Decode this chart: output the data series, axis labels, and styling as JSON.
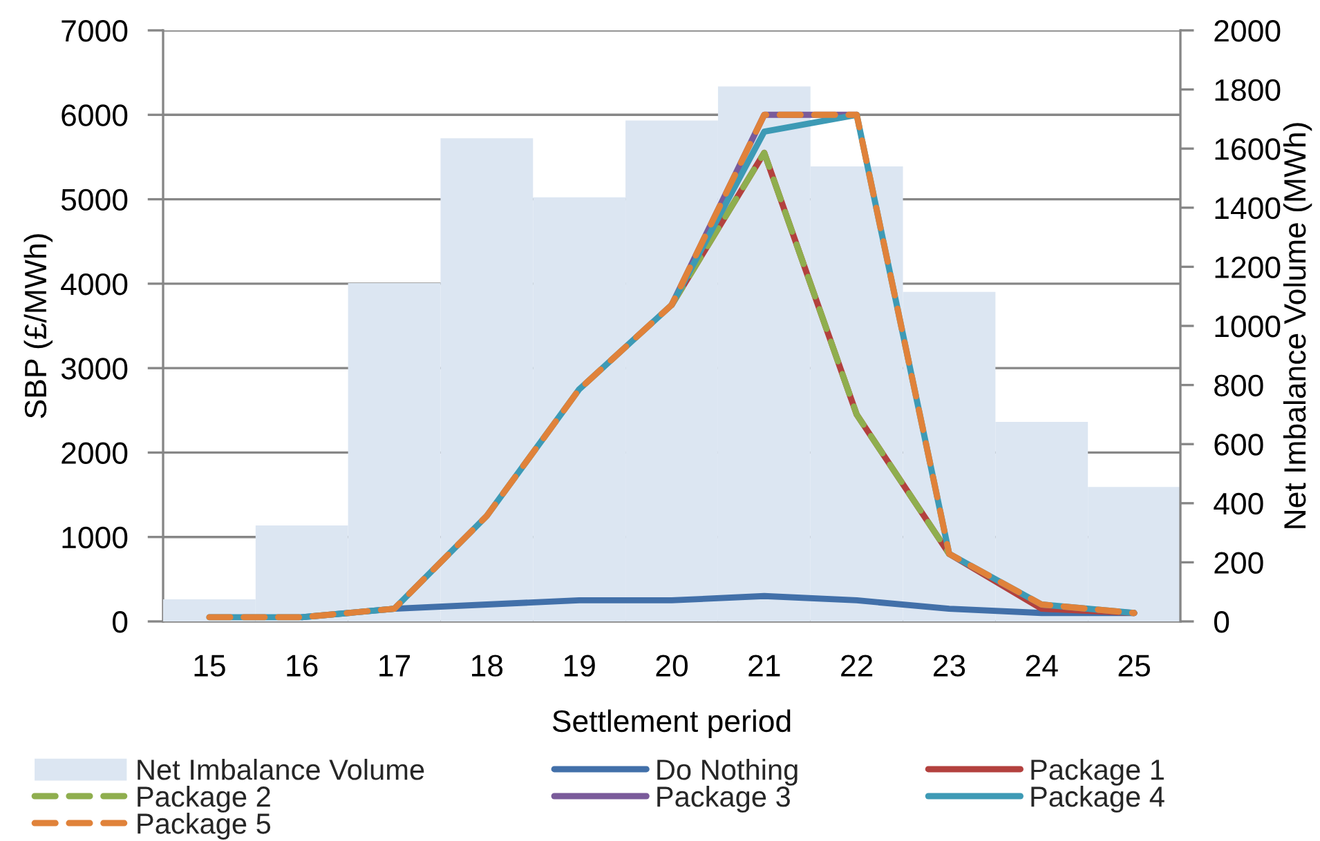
{
  "chart_data": {
    "type": "line",
    "xlabel": "Settlement period",
    "ylabel": "SBP (£/MWh)",
    "y2label": "Net Imbalance Volume (MWh)",
    "categories": [
      "15",
      "16",
      "17",
      "18",
      "19",
      "20",
      "21",
      "22",
      "23",
      "24",
      "25"
    ],
    "series": [
      {
        "name": "Net Imbalance Volume",
        "type": "bar",
        "axis": "y2",
        "color": "#dce6f2",
        "values": [
          75,
          325,
          1145,
          1635,
          1435,
          1695,
          1810,
          1540,
          1115,
          675,
          455
        ]
      },
      {
        "name": "Do Nothing",
        "color": "#4270a9",
        "values": [
          null,
          50,
          150,
          200,
          250,
          250,
          300,
          250,
          150,
          100,
          100
        ]
      },
      {
        "name": "Package 1",
        "color": "#b3413e",
        "values": [
          null,
          null,
          null,
          null,
          null,
          3750,
          5550,
          2450,
          800,
          150,
          100
        ]
      },
      {
        "name": "Package 2",
        "color": "#8fae4e",
        "line_style": "dashed",
        "values": [
          null,
          null,
          null,
          null,
          null,
          3750,
          5550,
          2450,
          800,
          null,
          null
        ]
      },
      {
        "name": "Package 3",
        "color": "#7a5b9a",
        "values": [
          null,
          null,
          null,
          null,
          null,
          3750,
          6000,
          6000,
          null,
          null,
          null
        ]
      },
      {
        "name": "Package 4",
        "color": "#3d9ab5",
        "values": [
          50,
          50,
          150,
          1250,
          2750,
          3750,
          5800,
          6000,
          800,
          200,
          100
        ]
      },
      {
        "name": "Package 5",
        "color": "#e0823a",
        "line_style": "dashed",
        "values": [
          50,
          50,
          150,
          1250,
          2750,
          3750,
          6000,
          6000,
          800,
          200,
          100
        ]
      }
    ],
    "line_style": "solid",
    "ylim": [
      0,
      7000
    ],
    "yticks": [
      0,
      1000,
      2000,
      3000,
      4000,
      5000,
      6000,
      7000
    ],
    "y2lim": [
      0,
      2000
    ],
    "y2ticks": [
      0,
      200,
      400,
      600,
      800,
      1000,
      1200,
      1400,
      1600,
      1800,
      2000
    ],
    "grid": "y",
    "legend": "bottom"
  }
}
